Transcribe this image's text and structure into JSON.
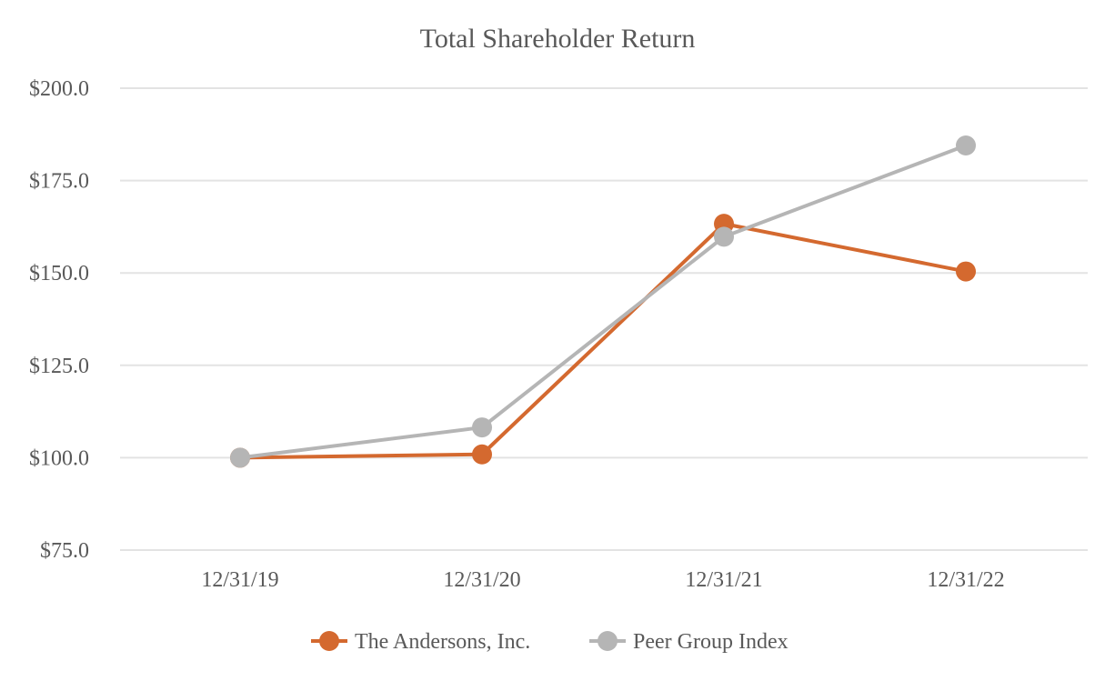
{
  "chart_data": {
    "type": "line",
    "title": "Total Shareholder Return",
    "xlabel": "",
    "ylabel": "",
    "categories": [
      "12/31/19",
      "12/31/20",
      "12/31/21",
      "12/31/22"
    ],
    "ylim": [
      75,
      200
    ],
    "yticks": [
      75,
      100,
      125,
      150,
      175,
      200
    ],
    "ytick_labels": [
      "$75.0",
      "$100.0",
      "$125.0",
      "$150.0",
      "$175.0",
      "$200.0"
    ],
    "grid": true,
    "legend_position": "bottom",
    "series": [
      {
        "name": "The Andersons, Inc.",
        "values": [
          100.0,
          100.9,
          163.3,
          150.4
        ],
        "color": "#d4692f"
      },
      {
        "name": "Peer Group Index",
        "values": [
          100.0,
          108.2,
          159.8,
          184.5
        ],
        "color": "#b5b5b5"
      }
    ]
  }
}
